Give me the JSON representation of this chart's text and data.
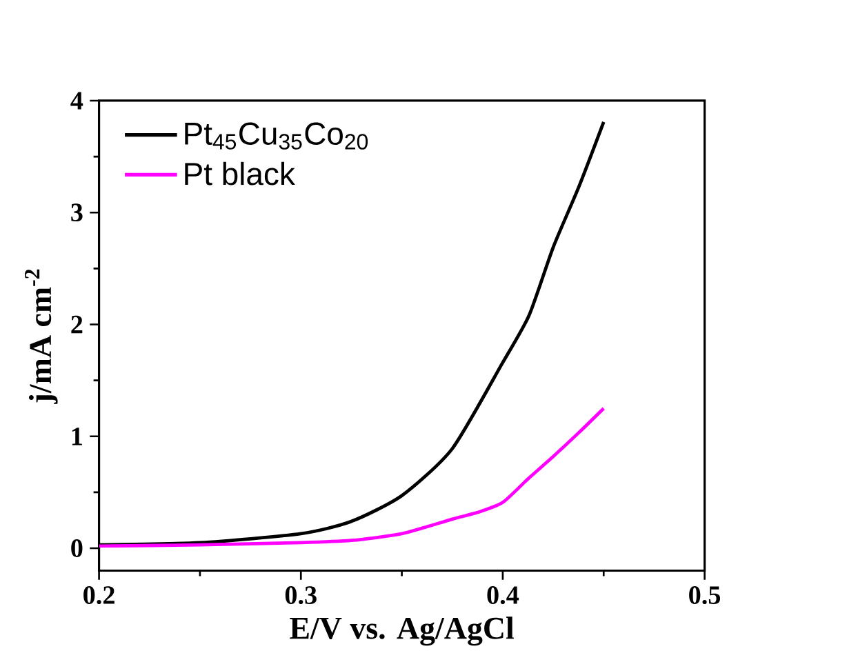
{
  "chart_data": {
    "type": "line",
    "xlabel": "E/V vs. Ag/AgCl",
    "ylabel": "j/mA cm$^{-2}$",
    "xlim": [
      0.2,
      0.5
    ],
    "ylim": [
      -0.2,
      4
    ],
    "xticks": [
      0.2,
      0.3,
      0.4,
      0.5
    ],
    "yticks": [
      0,
      1,
      2,
      3,
      4
    ],
    "legend": "top left",
    "grid": false,
    "series": [
      {
        "name": "Pt$_{45}$Cu$_{35}$Co$_{20}$",
        "color": "#000000",
        "x": [
          0.2,
          0.25,
          0.3,
          0.325,
          0.35,
          0.375,
          0.4,
          0.413,
          0.425,
          0.4377,
          0.45
        ],
        "values": [
          0.03,
          0.05,
          0.13,
          0.24,
          0.47,
          0.89,
          1.66,
          2.08,
          2.69,
          3.23,
          3.81
        ]
      },
      {
        "name": "Pt black",
        "color": "#ff00ff",
        "x": [
          0.2,
          0.25,
          0.3,
          0.325,
          0.35,
          0.375,
          0.3875,
          0.4,
          0.4125,
          0.425,
          0.4375,
          0.45
        ],
        "values": [
          0.02,
          0.03,
          0.05,
          0.07,
          0.13,
          0.26,
          0.32,
          0.41,
          0.62,
          0.82,
          1.03,
          1.25
        ]
      }
    ]
  }
}
